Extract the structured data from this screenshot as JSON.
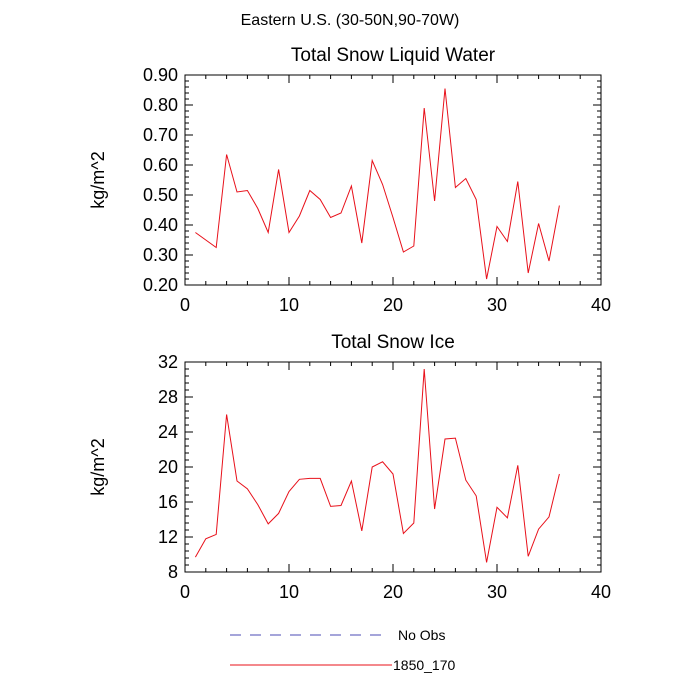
{
  "figure_title": "Eastern U.S. (30-50N,90-70W)",
  "legend": [
    {
      "label": "No Obs",
      "style": "dashed",
      "color": "#4b4bb4"
    },
    {
      "label": "1850_170",
      "style": "solid",
      "color": "#e8101a"
    }
  ],
  "chart_data": [
    {
      "type": "line",
      "title": "Total Snow Liquid Water",
      "xlabel": "",
      "ylabel": "kg/m^2",
      "xlim": [
        0,
        40
      ],
      "ylim": [
        0.2,
        0.9
      ],
      "x_ticks": [
        0,
        10,
        20,
        30,
        40
      ],
      "x_tick_labels": [
        "0",
        "10",
        "20",
        "30",
        "40"
      ],
      "y_ticks": [
        0.2,
        0.3,
        0.4,
        0.5,
        0.6,
        0.7,
        0.8,
        0.9
      ],
      "y_tick_labels": [
        "0.20",
        "0.30",
        "0.40",
        "0.50",
        "0.60",
        "0.70",
        "0.80",
        "0.90"
      ],
      "series": [
        {
          "name": "1850_170",
          "color": "#e8101a",
          "x": [
            1,
            2,
            3,
            4,
            5,
            6,
            7,
            8,
            9,
            10,
            11,
            12,
            13,
            14,
            15,
            16,
            17,
            18,
            19,
            20,
            21,
            22,
            23,
            24,
            25,
            26,
            27,
            28,
            29,
            30,
            31,
            32,
            33,
            34,
            35,
            36
          ],
          "values": [
            0.375,
            0.35,
            0.325,
            0.635,
            0.51,
            0.515,
            0.455,
            0.375,
            0.585,
            0.375,
            0.43,
            0.515,
            0.485,
            0.425,
            0.44,
            0.53,
            0.34,
            0.615,
            0.535,
            0.425,
            0.31,
            0.33,
            0.79,
            0.48,
            0.855,
            0.525,
            0.555,
            0.485,
            0.22,
            0.395,
            0.345,
            0.545,
            0.24,
            0.405,
            0.28,
            0.465
          ]
        }
      ]
    },
    {
      "type": "line",
      "title": "Total Snow Ice",
      "xlabel": "",
      "ylabel": "kg/m^2",
      "xlim": [
        0,
        40
      ],
      "ylim": [
        8,
        32
      ],
      "x_ticks": [
        0,
        10,
        20,
        30,
        40
      ],
      "x_tick_labels": [
        "0",
        "10",
        "20",
        "30",
        "40"
      ],
      "y_ticks": [
        8,
        12,
        16,
        20,
        24,
        28,
        32
      ],
      "y_tick_labels": [
        "8",
        "12",
        "16",
        "20",
        "24",
        "28",
        "32"
      ],
      "series": [
        {
          "name": "1850_170",
          "color": "#e8101a",
          "x": [
            1,
            2,
            3,
            4,
            5,
            6,
            7,
            8,
            9,
            10,
            11,
            12,
            13,
            14,
            15,
            16,
            17,
            18,
            19,
            20,
            21,
            22,
            23,
            24,
            25,
            26,
            27,
            28,
            29,
            30,
            31,
            32,
            33,
            34,
            35,
            36
          ],
          "values": [
            9.7,
            11.8,
            12.3,
            26.0,
            18.4,
            17.5,
            15.7,
            13.5,
            14.7,
            17.2,
            18.6,
            18.7,
            18.7,
            15.5,
            15.6,
            18.4,
            12.7,
            20.0,
            20.6,
            19.2,
            12.4,
            13.6,
            31.2,
            15.2,
            23.2,
            23.3,
            18.5,
            16.7,
            9.1,
            15.4,
            14.2,
            20.2,
            9.8,
            12.9,
            14.3,
            19.2
          ]
        }
      ]
    }
  ]
}
